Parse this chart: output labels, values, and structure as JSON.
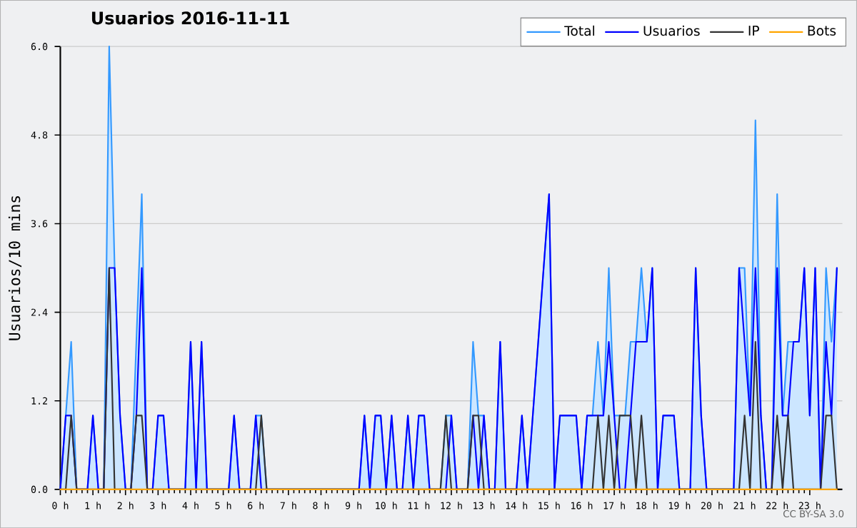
{
  "chart_data": {
    "type": "line",
    "title": "Usuarios  2016-11-11",
    "ylabel": "Usuarios/10 mins",
    "x": [
      0,
      0.167,
      0.333,
      0.5,
      0.667,
      0.833,
      1,
      1.167,
      1.333,
      1.5,
      1.667,
      1.833,
      2,
      2.167,
      2.333,
      2.5,
      2.667,
      2.833,
      3,
      3.167,
      3.333,
      3.5,
      3.667,
      3.833,
      4,
      4.167,
      4.333,
      4.5,
      4.667,
      4.833,
      5,
      5.167,
      5.333,
      5.5,
      5.667,
      5.833,
      6,
      6.167,
      6.333,
      6.5,
      6.667,
      6.833,
      7,
      7.167,
      7.333,
      7.5,
      7.667,
      7.833,
      8,
      8.167,
      8.333,
      8.5,
      8.667,
      8.833,
      9,
      9.167,
      9.333,
      9.5,
      9.667,
      9.833,
      10,
      10.167,
      10.333,
      10.5,
      10.667,
      10.833,
      11,
      11.167,
      11.333,
      11.5,
      11.667,
      11.833,
      12,
      12.167,
      12.333,
      12.5,
      12.667,
      12.833,
      13,
      13.167,
      13.333,
      13.5,
      13.667,
      13.833,
      14,
      14.167,
      14.333,
      14.5,
      14.667,
      14.833,
      15,
      15.167,
      15.333,
      15.5,
      15.667,
      15.833,
      16,
      16.167,
      16.333,
      16.5,
      16.667,
      16.833,
      17,
      17.167,
      17.333,
      17.5,
      17.667,
      17.833,
      18,
      18.167,
      18.333,
      18.5,
      18.667,
      18.833,
      19,
      19.167,
      19.333,
      19.5,
      19.667,
      19.833,
      20,
      20.167,
      20.333,
      20.5,
      20.667,
      20.833,
      21,
      21.167,
      21.333,
      21.5,
      21.667,
      21.833,
      22,
      22.167,
      22.333,
      22.5,
      22.667,
      22.833,
      23,
      23.167,
      23.333,
      23.5,
      23.667,
      23.833
    ],
    "series": [
      {
        "name": "Total",
        "type": "area",
        "color": "#3399ff",
        "values": [
          0,
          1,
          2,
          0,
          0,
          0,
          1,
          0,
          0,
          6,
          3,
          1,
          0,
          0,
          2,
          4,
          0,
          0,
          1,
          1,
          0,
          0,
          0,
          0,
          2,
          0,
          2,
          0,
          0,
          0,
          0,
          0,
          1,
          0,
          0,
          0,
          1,
          1,
          0,
          0,
          0,
          0,
          0,
          0,
          0,
          0,
          0,
          0,
          0,
          0,
          0,
          0,
          0,
          0,
          0,
          0,
          1,
          0,
          1,
          1,
          0,
          1,
          0,
          0,
          1,
          0,
          1,
          1,
          0,
          0,
          0,
          1,
          1,
          0,
          0,
          0,
          2,
          1,
          1,
          0,
          0,
          2,
          0,
          0,
          0,
          1,
          0,
          1,
          2,
          3,
          4,
          0,
          1,
          1,
          1,
          1,
          0,
          1,
          1,
          2,
          1,
          3,
          1,
          1,
          1,
          2,
          2,
          3,
          2,
          3,
          0,
          1,
          1,
          1,
          0,
          0,
          0,
          3,
          1,
          0,
          0,
          0,
          0,
          0,
          0,
          3,
          3,
          1,
          5,
          1,
          0,
          0,
          4,
          1,
          2,
          2,
          2,
          3,
          1,
          3,
          0,
          3,
          2,
          3
        ]
      },
      {
        "name": "Usuarios",
        "type": "line",
        "color": "#0000ff",
        "values": [
          0,
          1,
          1,
          0,
          0,
          0,
          1,
          0,
          0,
          3,
          3,
          1,
          0,
          0,
          1,
          3,
          0,
          0,
          1,
          1,
          0,
          0,
          0,
          0,
          2,
          0,
          2,
          0,
          0,
          0,
          0,
          0,
          1,
          0,
          0,
          0,
          1,
          0,
          0,
          0,
          0,
          0,
          0,
          0,
          0,
          0,
          0,
          0,
          0,
          0,
          0,
          0,
          0,
          0,
          0,
          0,
          1,
          0,
          1,
          1,
          0,
          1,
          0,
          0,
          1,
          0,
          1,
          1,
          0,
          0,
          0,
          0,
          1,
          0,
          0,
          0,
          1,
          0,
          1,
          0,
          0,
          2,
          0,
          0,
          0,
          1,
          0,
          1,
          2,
          3,
          4,
          0,
          1,
          1,
          1,
          1,
          0,
          1,
          1,
          1,
          1,
          2,
          1,
          0,
          0,
          1,
          2,
          2,
          2,
          3,
          0,
          1,
          1,
          1,
          0,
          0,
          0,
          3,
          1,
          0,
          0,
          0,
          0,
          0,
          0,
          3,
          2,
          1,
          3,
          1,
          0,
          0,
          3,
          1,
          1,
          2,
          2,
          3,
          1,
          3,
          0,
          2,
          1,
          3
        ]
      },
      {
        "name": "IP",
        "type": "line",
        "color": "#333333",
        "values": [
          0,
          0,
          1,
          0,
          0,
          0,
          0,
          0,
          0,
          3,
          0,
          0,
          0,
          0,
          1,
          1,
          0,
          0,
          0,
          0,
          0,
          0,
          0,
          0,
          0,
          0,
          0,
          0,
          0,
          0,
          0,
          0,
          0,
          0,
          0,
          0,
          0,
          1,
          0,
          0,
          0,
          0,
          0,
          0,
          0,
          0,
          0,
          0,
          0,
          0,
          0,
          0,
          0,
          0,
          0,
          0,
          0,
          0,
          0,
          0,
          0,
          0,
          0,
          0,
          0,
          0,
          0,
          0,
          0,
          0,
          0,
          1,
          0,
          0,
          0,
          0,
          1,
          1,
          0,
          0,
          0,
          0,
          0,
          0,
          0,
          0,
          0,
          0,
          0,
          0,
          0,
          0,
          0,
          0,
          0,
          0,
          0,
          0,
          0,
          1,
          0,
          1,
          0,
          1,
          1,
          1,
          0,
          1,
          0,
          0,
          0,
          0,
          0,
          0,
          0,
          0,
          0,
          0,
          0,
          0,
          0,
          0,
          0,
          0,
          0,
          0,
          1,
          0,
          2,
          0,
          0,
          0,
          1,
          0,
          1,
          0,
          0,
          0,
          0,
          0,
          0,
          1,
          1,
          0
        ]
      },
      {
        "name": "Bots",
        "type": "line",
        "color": "#ffa500",
        "values": [
          0,
          0,
          0,
          0,
          0,
          0,
          0,
          0,
          0,
          0,
          0,
          0,
          0,
          0,
          0,
          0,
          0,
          0,
          0,
          0,
          0,
          0,
          0,
          0,
          0,
          0,
          0,
          0,
          0,
          0,
          0,
          0,
          0,
          0,
          0,
          0,
          0,
          0,
          0,
          0,
          0,
          0,
          0,
          0,
          0,
          0,
          0,
          0,
          0,
          0,
          0,
          0,
          0,
          0,
          0,
          0,
          0,
          0,
          0,
          0,
          0,
          0,
          0,
          0,
          0,
          0,
          0,
          0,
          0,
          0,
          0,
          0,
          0,
          0,
          0,
          0,
          0,
          0,
          0,
          0,
          0,
          0,
          0,
          0,
          0,
          0,
          0,
          0,
          0,
          0,
          0,
          0,
          0,
          0,
          0,
          0,
          0,
          0,
          0,
          0,
          0,
          0,
          0,
          0,
          0,
          0,
          0,
          0,
          0,
          0,
          0,
          0,
          0,
          0,
          0,
          0,
          0,
          0,
          0,
          0,
          0,
          0,
          0,
          0,
          0,
          0,
          0,
          0,
          0,
          0,
          0,
          0,
          0,
          0,
          0,
          0,
          0,
          0,
          0,
          0,
          0,
          0,
          0,
          0
        ]
      }
    ],
    "xlim": [
      0,
      24
    ],
    "xticks": [
      {
        "value": 0,
        "label": "0 h"
      },
      {
        "value": 1,
        "label": "1 h"
      },
      {
        "value": 2,
        "label": "2 h"
      },
      {
        "value": 3,
        "label": "3 h"
      },
      {
        "value": 4,
        "label": "4 h"
      },
      {
        "value": 5,
        "label": "5 h"
      },
      {
        "value": 6,
        "label": "6 h"
      },
      {
        "value": 7,
        "label": "7 h"
      },
      {
        "value": 8,
        "label": "8 h"
      },
      {
        "value": 9,
        "label": "9 h"
      },
      {
        "value": 10,
        "label": "10 h"
      },
      {
        "value": 11,
        "label": "11 h"
      },
      {
        "value": 12,
        "label": "12 h"
      },
      {
        "value": 13,
        "label": "13 h"
      },
      {
        "value": 14,
        "label": "14 h"
      },
      {
        "value": 15,
        "label": "15 h"
      },
      {
        "value": 16,
        "label": "16 h"
      },
      {
        "value": 17,
        "label": "17 h"
      },
      {
        "value": 18,
        "label": "18 h"
      },
      {
        "value": 19,
        "label": "19 h"
      },
      {
        "value": 20,
        "label": "20 h"
      },
      {
        "value": 21,
        "label": "21 h"
      },
      {
        "value": 22,
        "label": "22 h"
      },
      {
        "value": 23,
        "label": "23 h"
      }
    ],
    "ylim": [
      0,
      6
    ],
    "yticks": [
      {
        "value": 0,
        "label": "0.0"
      },
      1.2,
      2.4,
      3.6,
      4.8,
      {
        "value": 6,
        "label": "6.0"
      }
    ],
    "grid": "y",
    "legend": "top right",
    "annotations": [
      "CC BY-SA 3.0"
    ]
  }
}
